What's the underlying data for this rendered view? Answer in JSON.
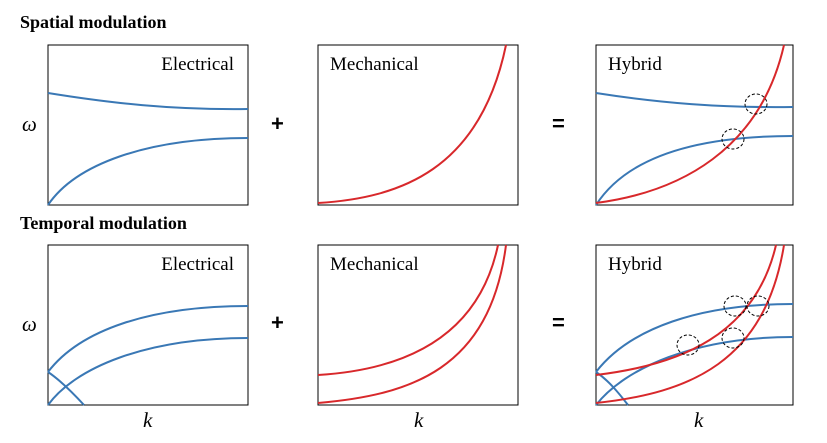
{
  "rows": [
    {
      "heading": "Spatial modulation",
      "panels": [
        {
          "label": "Electrical",
          "ylabel": "ω"
        },
        {
          "label": "Mechanical"
        },
        {
          "label": "Hybrid"
        }
      ]
    },
    {
      "heading": "Temporal modulation",
      "panels": [
        {
          "label": "Electrical",
          "ylabel": "ω"
        },
        {
          "label": "Mechanical"
        },
        {
          "label": "Hybrid"
        }
      ]
    }
  ],
  "operators": {
    "plus": "+",
    "equals": "="
  },
  "xlabel": "k",
  "colors": {
    "electrical": "#3a78b5",
    "mechanical": "#d8282b",
    "frame": "#000000",
    "marker": "#000000"
  }
}
